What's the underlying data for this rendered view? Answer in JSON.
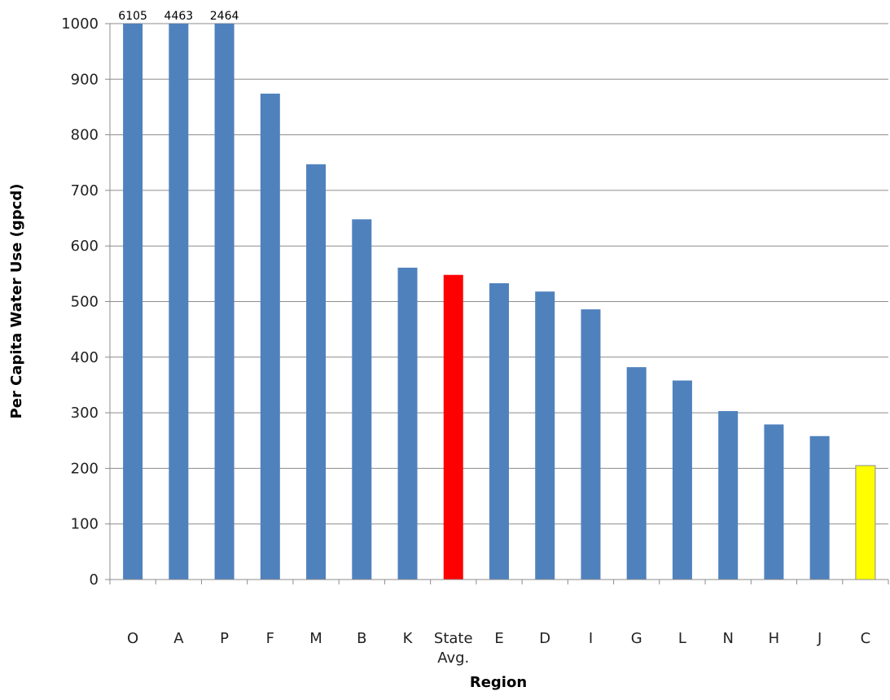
{
  "chart_data": {
    "type": "bar",
    "title": "",
    "xlabel": "Region",
    "ylabel": "Per Capita Water Use (gpcd)",
    "ylim": [
      0,
      1000
    ],
    "yticks": [
      0,
      100,
      200,
      300,
      400,
      500,
      600,
      700,
      800,
      900,
      1000
    ],
    "grid": true,
    "categories": [
      "O",
      "A",
      "P",
      "F",
      "M",
      "B",
      "K",
      "State Avg.",
      "E",
      "D",
      "I",
      "G",
      "L",
      "N",
      "H",
      "J",
      "C"
    ],
    "values": [
      6105,
      4463,
      2464,
      874,
      747,
      648,
      561,
      548,
      533,
      518,
      486,
      382,
      358,
      303,
      279,
      258,
      205
    ],
    "data_labels": [
      "6105",
      "4463",
      "2464",
      "",
      "",
      "",
      "",
      "",
      "",
      "",
      "",
      "",
      "",
      "",
      "",
      "",
      ""
    ],
    "bar_colors": [
      "#4F81BD",
      "#4F81BD",
      "#4F81BD",
      "#4F81BD",
      "#4F81BD",
      "#4F81BD",
      "#4F81BD",
      "#FF0000",
      "#4F81BD",
      "#4F81BD",
      "#4F81BD",
      "#4F81BD",
      "#4F81BD",
      "#4F81BD",
      "#4F81BD",
      "#4F81BD",
      "#FFFF00"
    ],
    "gridline_color": "#8C8C8C",
    "axis_color": "#8C8C8C"
  }
}
